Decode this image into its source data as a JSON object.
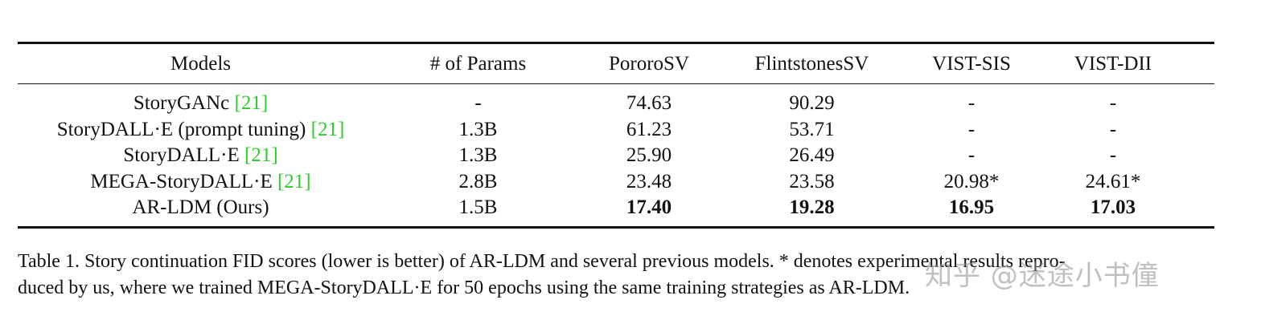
{
  "table": {
    "headers": [
      "Models",
      "# of Params",
      "PororoSV",
      "FlintstonesSV",
      "VIST-SIS",
      "VIST-DII"
    ],
    "rows": [
      {
        "model": "StoryGANc",
        "cite": "[21]",
        "params": "-",
        "pororo": "74.63",
        "flint": "90.29",
        "sis": "-",
        "dii": "-"
      },
      {
        "model": "StoryDALL·E (prompt tuning)",
        "cite": "[21]",
        "params": "1.3B",
        "pororo": "61.23",
        "flint": "53.71",
        "sis": "-",
        "dii": "-"
      },
      {
        "model": "StoryDALL·E",
        "cite": "[21]",
        "params": "1.3B",
        "pororo": "25.90",
        "flint": "26.49",
        "sis": "-",
        "dii": "-"
      },
      {
        "model": "MEGA-StoryDALL·E",
        "cite": "[21]",
        "params": "2.8B",
        "pororo": "23.48",
        "flint": "23.58",
        "sis": "20.98*",
        "dii": "24.61*"
      },
      {
        "model": "AR-LDM (Ours)",
        "cite": "",
        "params": "1.5B",
        "pororo": "17.40",
        "flint": "19.28",
        "sis": "16.95",
        "dii": "17.03"
      }
    ]
  },
  "caption": {
    "line1": "Table 1. Story continuation FID scores (lower is better) of AR-LDM and several previous models. * denotes experimental results repro-",
    "line2": "duced by us, where we trained MEGA-StoryDALL·E for 50 epochs using the same training strategies as AR-LDM."
  },
  "watermark": "知乎 @迷途小书僮",
  "colors": {
    "citation": "#2ecc2e",
    "text": "#111111"
  }
}
